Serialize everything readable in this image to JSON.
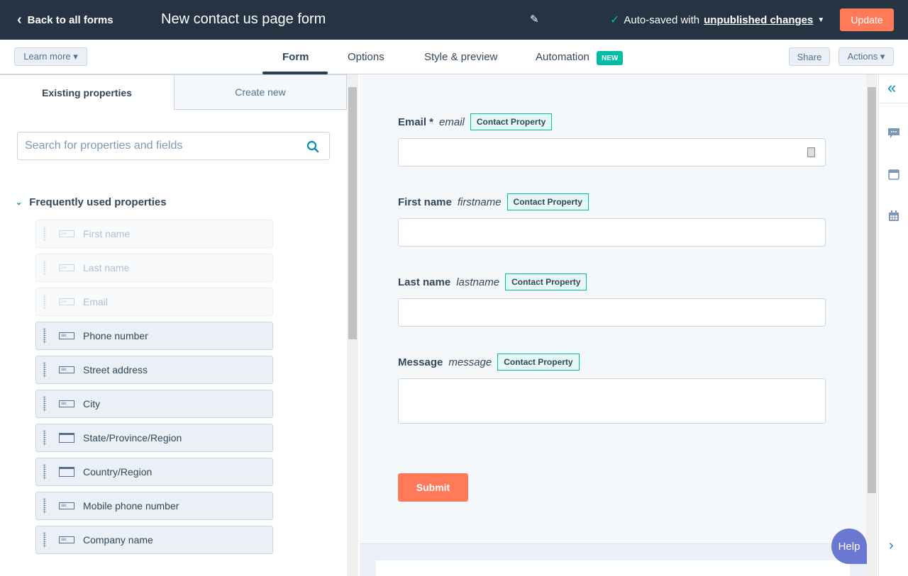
{
  "header": {
    "back_label": "Back to all forms",
    "title": "New contact us page form",
    "autosave_prefix": "Auto-saved with",
    "autosave_link": "unpublished changes",
    "update_label": "Update"
  },
  "subnav": {
    "learn_more": "Learn more ▾",
    "tabs": [
      "Form",
      "Options",
      "Style & preview",
      "Automation"
    ],
    "active_tab": "Form",
    "new_badge": "NEW",
    "share": "Share",
    "actions": "Actions ▾"
  },
  "left_panel": {
    "tabs": [
      "Existing properties",
      "Create new"
    ],
    "search_placeholder": "Search for properties and fields",
    "section_title": "Frequently used properties",
    "items": [
      {
        "label": "First name",
        "type": "text",
        "disabled": true
      },
      {
        "label": "Last name",
        "type": "text",
        "disabled": true
      },
      {
        "label": "Email",
        "type": "text",
        "disabled": true
      },
      {
        "label": "Phone number",
        "type": "text",
        "disabled": false
      },
      {
        "label": "Street address",
        "type": "text",
        "disabled": false
      },
      {
        "label": "City",
        "type": "text",
        "disabled": false
      },
      {
        "label": "State/Province/Region",
        "type": "select",
        "disabled": false
      },
      {
        "label": "Country/Region",
        "type": "select",
        "disabled": false
      },
      {
        "label": "Mobile phone number",
        "type": "text",
        "disabled": false
      },
      {
        "label": "Company name",
        "type": "text",
        "disabled": false
      }
    ]
  },
  "form": {
    "fields": [
      {
        "label": "Email *",
        "internal": "email",
        "badge": "Contact Property"
      },
      {
        "label": "First name",
        "internal": "firstname",
        "badge": "Contact Property"
      },
      {
        "label": "Last name",
        "internal": "lastname",
        "badge": "Contact Property"
      },
      {
        "label": "Message",
        "internal": "message",
        "badge": "Contact Property"
      }
    ],
    "submit_label": "Submit"
  },
  "help_label": "Help",
  "colors": {
    "header_bg": "#253342",
    "accent_orange": "#ff7a59",
    "teal": "#00bda5",
    "help": "#6a78d1"
  }
}
